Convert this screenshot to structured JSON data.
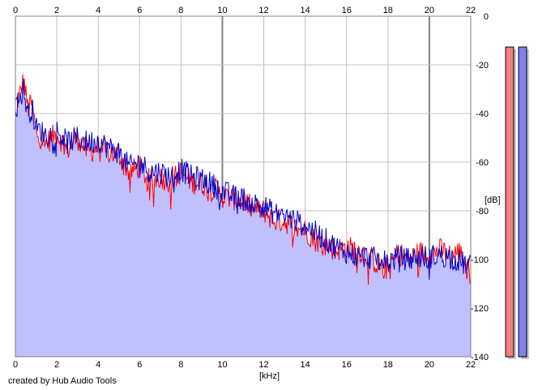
{
  "chart_data": {
    "type": "area",
    "x_unit_label": "[kHz]",
    "y_unit_label": "[dB]",
    "xlim": [
      0,
      22
    ],
    "ylim": [
      -140,
      0
    ],
    "x_ticks": [
      "0",
      "2",
      "4",
      "6",
      "8",
      "10",
      "12",
      "14",
      "16",
      "18",
      "20",
      "22"
    ],
    "y_ticks": [
      "0",
      "-20",
      "-40",
      "-60",
      "-80",
      "-100",
      "-120",
      "-140"
    ],
    "grid": true,
    "x_ticks_on": "top and bottom",
    "y_ticks_on": "right",
    "footer": "created by Hub Audio Tools",
    "colors": {
      "left_channel": "#ff0000",
      "right_channel": "#0000cc",
      "fill": "#c0c0ff",
      "grid": "#c0c0c0",
      "grid_major": "#808080",
      "meter_left": "#f08080",
      "meter_right": "#8080f0",
      "meter_shadow": "#c8c8c8"
    },
    "meters": [
      {
        "name": "left",
        "level_db": -137
      },
      {
        "name": "right",
        "level_db": -137
      }
    ],
    "series": [
      {
        "name": "",
        "color": "#ff0000",
        "x": [
          0,
          0.2,
          0.4,
          0.6,
          0.8,
          1,
          1.5,
          2,
          2.5,
          3,
          3.5,
          4,
          4.5,
          5,
          5.5,
          6,
          6.5,
          7,
          7.5,
          8,
          8.5,
          9,
          9.5,
          10,
          10.5,
          11,
          11.5,
          12,
          12.5,
          13,
          13.5,
          14,
          14.5,
          15,
          15.5,
          16,
          16.5,
          17,
          17.5,
          18,
          18.5,
          19,
          19.5,
          20,
          20.5,
          21,
          21.5,
          22
        ],
        "y": [
          -36,
          -33,
          -26,
          -38,
          -36,
          -48,
          -52,
          -48,
          -55,
          -50,
          -56,
          -54,
          -56,
          -57,
          -64,
          -62,
          -68,
          -66,
          -68,
          -64,
          -68,
          -69,
          -70,
          -74,
          -75,
          -76,
          -79,
          -80,
          -84,
          -84,
          -87,
          -88,
          -92,
          -94,
          -96,
          -95,
          -96,
          -98,
          -102,
          -104,
          -97,
          -100,
          -97,
          -98,
          -96,
          -98,
          -97,
          -106
        ]
      },
      {
        "name": "",
        "color": "#0000cc",
        "x": [
          0,
          0.2,
          0.4,
          0.6,
          0.8,
          1,
          1.5,
          2,
          2.5,
          3,
          3.5,
          4,
          4.5,
          5,
          5.5,
          6,
          6.5,
          7,
          7.5,
          8,
          8.5,
          9,
          9.5,
          10,
          10.5,
          11,
          11.5,
          12,
          12.5,
          13,
          13.5,
          14,
          14.5,
          15,
          15.5,
          16,
          16.5,
          17,
          17.5,
          18,
          18.5,
          19,
          19.5,
          20,
          20.5,
          21,
          21.5,
          22
        ],
        "y": [
          -38,
          -34,
          -30,
          -40,
          -38,
          -46,
          -49,
          -47,
          -52,
          -50,
          -52,
          -51,
          -54,
          -56,
          -62,
          -60,
          -64,
          -64,
          -66,
          -63,
          -66,
          -67,
          -69,
          -72,
          -74,
          -75,
          -77,
          -78,
          -81,
          -82,
          -84,
          -86,
          -89,
          -92,
          -95,
          -97,
          -99,
          -99,
          -100,
          -101,
          -99,
          -100,
          -99,
          -99,
          -98,
          -99,
          -101,
          -103
        ]
      }
    ]
  }
}
